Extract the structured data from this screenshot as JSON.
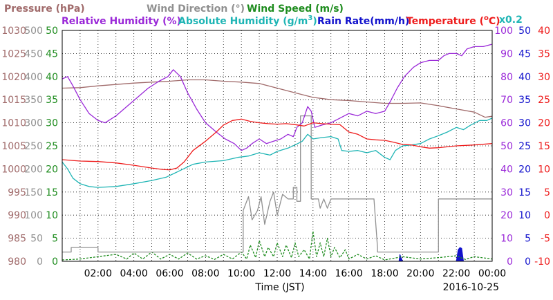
{
  "chart_data": {
    "type": "line",
    "legend": [
      {
        "text": "Pressure (hPa)",
        "color": "#a06a6a"
      },
      {
        "text": "Wind Direction (°)",
        "color": "#909090"
      },
      {
        "text": "Wind Speed (m/s)",
        "color": "#1e8c1e"
      },
      {
        "text": "Relative Humidity (%)",
        "color": "#9a28d8"
      },
      {
        "text": "Absolute Humidity (g/m",
        "sup": "3",
        "close": ")",
        "color": "#1fb5b5"
      },
      {
        "text": "Rain Rate(mm/h)",
        "color": "#1111cc"
      },
      {
        "text": "Temperature (",
        "sup": "o",
        "close": "C)",
        "color": "#ee1c1c"
      },
      {
        "text": "x0.2",
        "color": "#1fb5b5"
      }
    ],
    "xlabel": "Time (JST)",
    "date": "2016-10-25",
    "x_ticks": [
      "02:00",
      "04:00",
      "06:00",
      "08:00",
      "10:00",
      "12:00",
      "14:00",
      "16:00",
      "18:00",
      "20:00",
      "22:00",
      "00:00"
    ],
    "x_range_hours": [
      0,
      24
    ],
    "axes": {
      "pressure": {
        "ticks": [
          "1030",
          "1025",
          "1020",
          "1015",
          "1010",
          "1005",
          "1000",
          "995",
          "990",
          "985",
          "980"
        ],
        "color": "#a06a6a",
        "ylim": [
          980,
          1030
        ]
      },
      "wind_direction": {
        "ticks": [
          "500",
          "450",
          "400",
          "350",
          "300",
          "250",
          "200",
          "150",
          "100",
          "50",
          "0"
        ],
        "color": "#909090",
        "ylim": [
          0,
          500
        ]
      },
      "wind_speed": {
        "ticks": [
          "50",
          "45",
          "40",
          "35",
          "30",
          "25",
          "20",
          "15",
          "10",
          "5",
          "0"
        ],
        "color": "#1e8c1e",
        "ylim": [
          0,
          50
        ]
      },
      "relative_humidity": {
        "ticks": [
          "100",
          "90",
          "80",
          "70",
          "60",
          "50",
          "40",
          "30",
          "20",
          "10",
          "0"
        ],
        "color": "#9a28d8",
        "ylim": [
          0,
          100
        ]
      },
      "rain_rate": {
        "ticks": [
          "50",
          "45",
          "40",
          "35",
          "30",
          "25",
          "20",
          "15",
          "10",
          "5",
          "0"
        ],
        "color": "#1111cc",
        "ylim": [
          0,
          50
        ]
      },
      "temperature": {
        "ticks": [
          "40",
          "35",
          "30",
          "25",
          "20",
          "15",
          "10",
          "5",
          "0",
          "-5",
          "-10"
        ],
        "color": "#ee1c1c",
        "ylim": [
          -10,
          40
        ]
      }
    },
    "series": [
      {
        "name": "Pressure (hPa)",
        "axis": "pressure",
        "color": "#a06a6a",
        "points": [
          [
            0,
            1017.5
          ],
          [
            1,
            1017.6
          ],
          [
            2,
            1018
          ],
          [
            3,
            1018.3
          ],
          [
            4,
            1018.6
          ],
          [
            5,
            1018.8
          ],
          [
            6,
            1019
          ],
          [
            7,
            1019.3
          ],
          [
            8,
            1019.3
          ],
          [
            9,
            1019
          ],
          [
            10,
            1018.8
          ],
          [
            11,
            1018.5
          ],
          [
            12,
            1017.5
          ],
          [
            13,
            1016.5
          ],
          [
            14,
            1015.5
          ],
          [
            15,
            1015
          ],
          [
            16,
            1014.8
          ],
          [
            17,
            1014.5
          ],
          [
            18,
            1014.2
          ],
          [
            19,
            1014.2
          ],
          [
            20,
            1014.3
          ],
          [
            21,
            1013.7
          ],
          [
            22,
            1013
          ],
          [
            23,
            1012.3
          ],
          [
            23.6,
            1011.2
          ],
          [
            24,
            1011.4
          ]
        ]
      },
      {
        "name": "Wind Direction (°)",
        "axis": "wind_direction",
        "color": "#909090",
        "step": true,
        "points": [
          [
            0,
            20
          ],
          [
            0.5,
            20
          ],
          [
            0.5,
            30
          ],
          [
            2,
            30
          ],
          [
            2,
            20
          ],
          [
            10.1,
            20
          ],
          [
            10.1,
            110
          ],
          [
            10.4,
            140
          ],
          [
            10.6,
            90
          ],
          [
            10.9,
            110
          ],
          [
            11.1,
            140
          ],
          [
            11.3,
            80
          ],
          [
            11.6,
            130
          ],
          [
            11.8,
            150
          ],
          [
            12,
            100
          ],
          [
            12.3,
            145
          ],
          [
            12.6,
            135
          ],
          [
            12.9,
            135
          ],
          [
            12.9,
            160
          ],
          [
            13.1,
            160
          ],
          [
            13.1,
            130
          ],
          [
            13.3,
            130
          ],
          [
            13.3,
            315
          ],
          [
            13.9,
            315
          ],
          [
            13.9,
            135
          ],
          [
            14.3,
            135
          ],
          [
            14.4,
            115
          ],
          [
            14.6,
            135
          ],
          [
            14.8,
            115
          ],
          [
            15,
            135
          ],
          [
            17.4,
            135
          ],
          [
            17.6,
            30
          ],
          [
            17.6,
            20
          ],
          [
            21,
            20
          ],
          [
            21,
            135
          ],
          [
            24,
            135
          ]
        ]
      },
      {
        "name": "Wind Speed (m/s)",
        "axis": "wind_speed",
        "color": "#1e8c1e",
        "dashed": true,
        "points": [
          [
            0,
            0.3
          ],
          [
            1,
            0.5
          ],
          [
            2,
            1
          ],
          [
            3,
            1.5
          ],
          [
            3.6,
            0.5
          ],
          [
            4,
            1.8
          ],
          [
            4.5,
            0.5
          ],
          [
            5,
            2
          ],
          [
            5.5,
            0.5
          ],
          [
            6,
            1.5
          ],
          [
            6.5,
            0.5
          ],
          [
            7,
            1.8
          ],
          [
            7.5,
            0.5
          ],
          [
            8,
            1.2
          ],
          [
            8.5,
            0.4
          ],
          [
            9,
            1.5
          ],
          [
            9.5,
            0.5
          ],
          [
            10,
            2
          ],
          [
            10.3,
            0.5
          ],
          [
            10.5,
            3.5
          ],
          [
            10.8,
            0.8
          ],
          [
            11,
            4.5
          ],
          [
            11.3,
            1
          ],
          [
            11.5,
            3
          ],
          [
            11.8,
            1
          ],
          [
            12,
            4
          ],
          [
            12.3,
            1
          ],
          [
            12.5,
            3.5
          ],
          [
            12.8,
            0.8
          ],
          [
            13,
            4
          ],
          [
            13.2,
            1
          ],
          [
            13.5,
            2.5
          ],
          [
            13.8,
            0.5
          ],
          [
            14,
            6.5
          ],
          [
            14.2,
            1
          ],
          [
            14.4,
            4
          ],
          [
            14.6,
            1
          ],
          [
            14.8,
            5
          ],
          [
            15,
            1
          ],
          [
            15.2,
            3
          ],
          [
            15.5,
            0.8
          ],
          [
            15.8,
            2.5
          ],
          [
            16,
            0.5
          ],
          [
            16.5,
            1.5
          ],
          [
            17,
            0.5
          ],
          [
            17.5,
            1.2
          ],
          [
            18,
            0.3
          ],
          [
            19,
            1
          ],
          [
            20,
            0.5
          ],
          [
            21,
            0.8
          ],
          [
            22,
            1.2
          ],
          [
            22.5,
            0.4
          ],
          [
            23,
            1
          ],
          [
            24,
            0.5
          ]
        ]
      },
      {
        "name": "Relative Humidity (%)",
        "axis": "relative_humidity",
        "color": "#9a28d8",
        "points": [
          [
            0,
            79
          ],
          [
            0.3,
            80
          ],
          [
            0.6,
            76
          ],
          [
            1,
            70
          ],
          [
            1.5,
            64
          ],
          [
            2,
            61
          ],
          [
            2.4,
            60
          ],
          [
            3,
            63
          ],
          [
            3.6,
            67
          ],
          [
            4.2,
            71
          ],
          [
            4.8,
            75
          ],
          [
            5.4,
            78
          ],
          [
            5.9,
            80
          ],
          [
            6.2,
            83
          ],
          [
            6.6,
            80
          ],
          [
            7,
            73
          ],
          [
            7.5,
            66
          ],
          [
            8,
            60
          ],
          [
            8.6,
            56
          ],
          [
            9.1,
            53
          ],
          [
            9.6,
            51
          ],
          [
            10,
            48
          ],
          [
            10.3,
            49
          ],
          [
            10.6,
            51
          ],
          [
            11,
            53
          ],
          [
            11.4,
            51
          ],
          [
            11.8,
            52
          ],
          [
            12.2,
            53
          ],
          [
            12.6,
            55
          ],
          [
            12.9,
            54
          ],
          [
            13.1,
            58
          ],
          [
            13.4,
            60
          ],
          [
            13.7,
            67
          ],
          [
            13.9,
            65
          ],
          [
            14.1,
            58
          ],
          [
            14.5,
            59
          ],
          [
            15,
            60
          ],
          [
            15.5,
            62
          ],
          [
            16,
            64
          ],
          [
            16.5,
            63
          ],
          [
            17,
            65
          ],
          [
            17.5,
            64
          ],
          [
            18,
            65
          ],
          [
            18.3,
            69
          ],
          [
            18.7,
            75
          ],
          [
            19.1,
            80
          ],
          [
            19.6,
            84
          ],
          [
            20,
            86
          ],
          [
            20.5,
            87
          ],
          [
            21,
            87
          ],
          [
            21.3,
            89
          ],
          [
            21.6,
            90
          ],
          [
            22,
            90
          ],
          [
            22.3,
            89
          ],
          [
            22.6,
            92
          ],
          [
            23,
            93
          ],
          [
            23.5,
            93
          ],
          [
            24,
            94
          ]
        ]
      },
      {
        "name": "Absolute Humidity (g/m3)",
        "axis": "wind_speed",
        "color": "#1fb5b5",
        "points": [
          [
            0,
            21.5
          ],
          [
            0.3,
            20
          ],
          [
            0.6,
            18
          ],
          [
            1,
            16.8
          ],
          [
            1.5,
            16.2
          ],
          [
            2,
            16
          ],
          [
            3,
            16.2
          ],
          [
            4,
            16.8
          ],
          [
            5,
            17.5
          ],
          [
            5.8,
            18.2
          ],
          [
            6.5,
            19.5
          ],
          [
            7.3,
            21
          ],
          [
            8,
            21.5
          ],
          [
            9,
            21.8
          ],
          [
            9.8,
            22.5
          ],
          [
            10.4,
            22.8
          ],
          [
            11,
            23.5
          ],
          [
            11.6,
            23
          ],
          [
            12,
            23.8
          ],
          [
            12.6,
            24.5
          ],
          [
            13,
            25.2
          ],
          [
            13.4,
            26
          ],
          [
            13.7,
            27.5
          ],
          [
            14,
            26.5
          ],
          [
            14.5,
            26.8
          ],
          [
            15,
            27
          ],
          [
            15.4,
            26.5
          ],
          [
            15.6,
            24
          ],
          [
            16,
            23.8
          ],
          [
            16.5,
            24
          ],
          [
            17,
            23.5
          ],
          [
            17.5,
            24
          ],
          [
            18,
            22.5
          ],
          [
            18.3,
            22
          ],
          [
            18.6,
            24
          ],
          [
            19,
            25
          ],
          [
            19.5,
            25.2
          ],
          [
            20,
            25.5
          ],
          [
            20.5,
            26.5
          ],
          [
            21,
            27.2
          ],
          [
            21.5,
            28
          ],
          [
            22,
            29
          ],
          [
            22.4,
            28.5
          ],
          [
            22.8,
            29.5
          ],
          [
            23.3,
            30.5
          ],
          [
            23.7,
            30.5
          ],
          [
            24,
            31
          ]
        ]
      },
      {
        "name": "Temperature (°C)",
        "axis": "temperature",
        "color": "#ee1c1c",
        "points": [
          [
            0,
            12
          ],
          [
            1,
            11.7
          ],
          [
            2,
            11.6
          ],
          [
            3,
            11.3
          ],
          [
            4,
            10.8
          ],
          [
            5,
            10.2
          ],
          [
            5.6,
            9.9
          ],
          [
            6,
            9.8
          ],
          [
            6.4,
            10.2
          ],
          [
            6.8,
            11.5
          ],
          [
            7.3,
            14
          ],
          [
            8,
            16
          ],
          [
            8.6,
            18
          ],
          [
            9,
            19.5
          ],
          [
            9.5,
            20.5
          ],
          [
            10,
            20.8
          ],
          [
            10.5,
            20.3
          ],
          [
            11,
            20
          ],
          [
            11.5,
            19.8
          ],
          [
            12,
            19.7
          ],
          [
            12.5,
            19.8
          ],
          [
            13,
            19.6
          ],
          [
            13.5,
            19.3
          ],
          [
            14,
            20
          ],
          [
            14.5,
            19.8
          ],
          [
            15,
            19.7
          ],
          [
            15.5,
            19.6
          ],
          [
            16,
            18
          ],
          [
            16.5,
            17.5
          ],
          [
            17,
            16.5
          ],
          [
            17.5,
            16.3
          ],
          [
            18,
            16.2
          ],
          [
            18.5,
            15.8
          ],
          [
            19,
            15.3
          ],
          [
            19.5,
            15.2
          ],
          [
            20,
            14.8
          ],
          [
            20.5,
            14.5
          ],
          [
            21,
            14.6
          ],
          [
            22,
            15
          ],
          [
            23,
            15.2
          ],
          [
            24,
            15.5
          ]
        ]
      },
      {
        "name": "Rain Rate(mm/h)",
        "axis": "rain_rate",
        "color": "#1111cc",
        "fill": true,
        "points": [
          [
            0,
            0
          ],
          [
            18.8,
            0
          ],
          [
            18.85,
            1.5
          ],
          [
            18.95,
            0.5
          ],
          [
            19,
            0
          ],
          [
            22,
            0
          ],
          [
            22.1,
            2.5
          ],
          [
            22.2,
            3
          ],
          [
            22.3,
            2.8
          ],
          [
            22.4,
            0
          ],
          [
            24,
            0
          ]
        ]
      }
    ]
  }
}
